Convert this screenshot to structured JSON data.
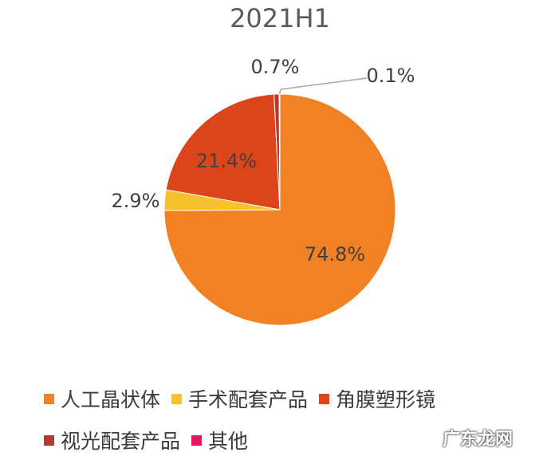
{
  "chart_data": {
    "type": "pie",
    "title": "2021H1",
    "categories": [
      "人工晶状体",
      "手术配套产品",
      "角膜塑形镜",
      "视光配套产品",
      "其他"
    ],
    "values": [
      74.8,
      2.9,
      21.4,
      0.7,
      0.1
    ],
    "labels": [
      "74.8%",
      "2.9%",
      "21.4%",
      "0.7%",
      "0.1%"
    ],
    "colors": [
      "#F28123",
      "#F6C12C",
      "#DC4419",
      "#B8362E",
      "#E0185A"
    ],
    "legend_position": "bottom"
  },
  "watermark": "广东龙网"
}
